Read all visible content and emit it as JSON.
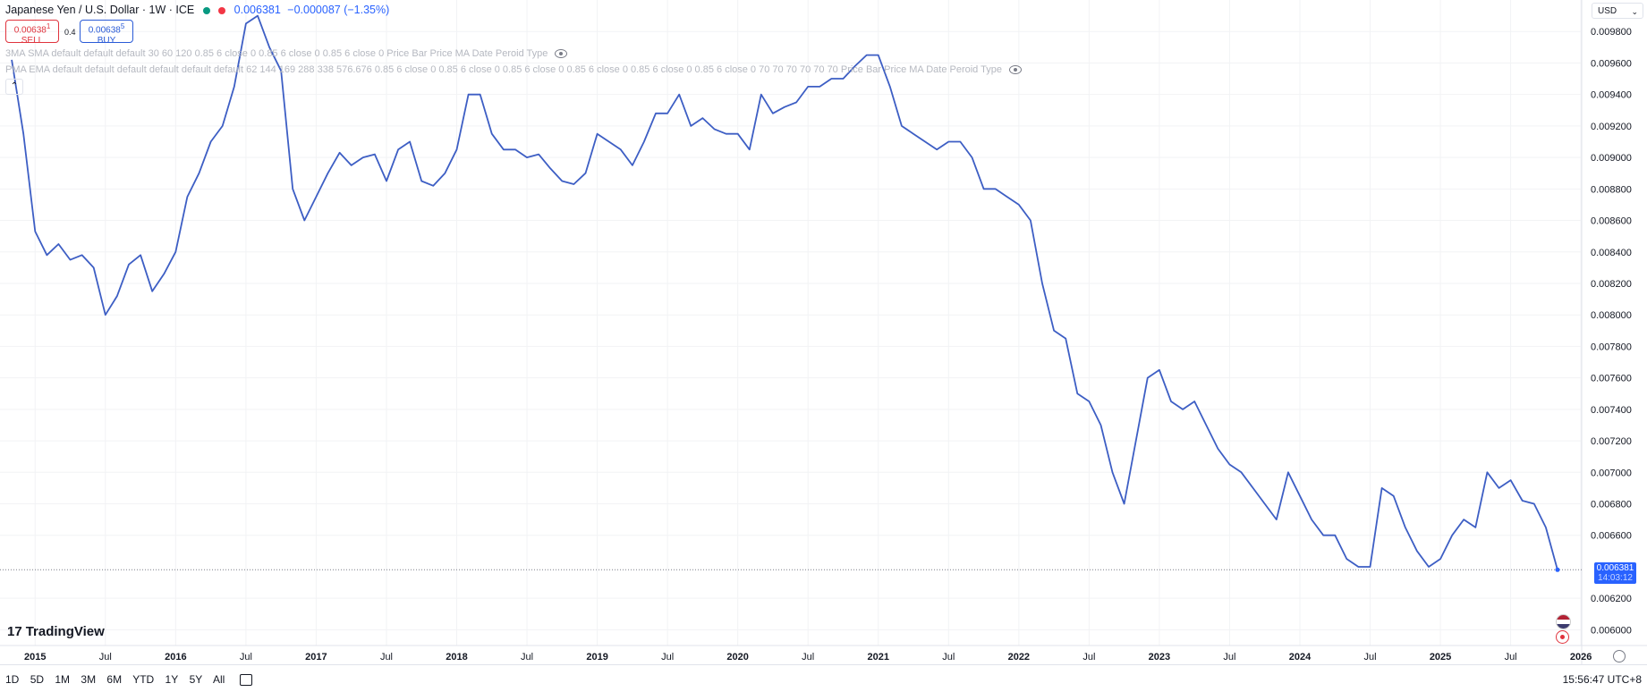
{
  "header": {
    "symbol_title": "Japanese Yen / U.S. Dollar · 1W · ICE",
    "last_price": "0.006381",
    "change": "−0.000087 (−1.35%)",
    "status_colors": [
      "#089981",
      "#f23645"
    ]
  },
  "trade": {
    "sell_price": "0.00638",
    "sell_sup": "1",
    "sell_label": "SELL",
    "spread": "0.4",
    "buy_price": "0.00638",
    "buy_sup": "5",
    "buy_label": "BUY"
  },
  "indicators": {
    "sma_label": "3MA SMA default default default 30 60 120 0.85 6 close 0 0.85 6 close 0 0.85 6 close 0 Price Bar Price MA Date Peroid Type",
    "ema_label": "PMA EMA default default default default default default 62 144 169 288 338 576.676 0.85 6 close 0 0.85 6 close 0 0.85 6 close 0 0.85 6 close 0 0.85 6 close 0 0.85 6 close 0 70 70 70 70 70 70 Price Bar Price MA Date Peroid Type"
  },
  "currency_selector": "USD",
  "brand": "TradingView",
  "price_tag": {
    "value": "0.006381",
    "countdown": "14:03:12"
  },
  "bottom": {
    "ranges": [
      "1D",
      "5D",
      "1M",
      "3M",
      "6M",
      "YTD",
      "1Y",
      "5Y",
      "All"
    ],
    "time": "15:56:47 UTC+8"
  },
  "colors": {
    "line": "#3d5ec4",
    "accent": "#2962ff",
    "sell": "#e0333d",
    "buy": "#2a5bd7",
    "grid": "#f2f3f5"
  },
  "chart_data": {
    "type": "line",
    "title": "Japanese Yen / U.S. Dollar · 1W · ICE",
    "series": [
      {
        "name": "",
        "x": [],
        "y": []
      }
    ],
    "x": [
      "2014-11",
      "2014-12",
      "2015-01",
      "2015-02",
      "2015-03",
      "2015-04",
      "2015-05",
      "2015-06",
      "2015-07",
      "2015-08",
      "2015-09",
      "2015-10",
      "2015-11",
      "2015-12",
      "2016-01",
      "2016-02",
      "2016-03",
      "2016-04",
      "2016-05",
      "2016-06",
      "2016-07",
      "2016-08",
      "2016-09",
      "2016-10",
      "2016-11",
      "2016-12",
      "2017-01",
      "2017-02",
      "2017-03",
      "2017-04",
      "2017-05",
      "2017-06",
      "2017-07",
      "2017-08",
      "2017-09",
      "2017-10",
      "2017-11",
      "2017-12",
      "2018-01",
      "2018-02",
      "2018-03",
      "2018-04",
      "2018-05",
      "2018-06",
      "2018-07",
      "2018-08",
      "2018-09",
      "2018-10",
      "2018-11",
      "2018-12",
      "2019-01",
      "2019-02",
      "2019-03",
      "2019-04",
      "2019-05",
      "2019-06",
      "2019-07",
      "2019-08",
      "2019-09",
      "2019-10",
      "2019-11",
      "2019-12",
      "2020-01",
      "2020-02",
      "2020-03",
      "2020-04",
      "2020-05",
      "2020-06",
      "2020-07",
      "2020-08",
      "2020-09",
      "2020-10",
      "2020-11",
      "2020-12",
      "2021-01",
      "2021-02",
      "2021-03",
      "2021-04",
      "2021-05",
      "2021-06",
      "2021-07",
      "2021-08",
      "2021-09",
      "2021-10",
      "2021-11",
      "2021-12",
      "2022-01",
      "2022-02",
      "2022-03",
      "2022-04",
      "2022-05",
      "2022-06",
      "2022-07",
      "2022-08",
      "2022-09",
      "2022-10",
      "2022-11",
      "2022-12",
      "2023-01",
      "2023-02",
      "2023-03",
      "2023-04",
      "2023-05",
      "2023-06",
      "2023-07",
      "2023-08",
      "2023-09",
      "2023-10",
      "2023-11",
      "2023-12",
      "2024-01",
      "2024-02",
      "2024-03",
      "2024-04",
      "2024-05",
      "2024-06",
      "2024-07",
      "2024-08",
      "2024-09",
      "2024-10",
      "2024-11",
      "2024-12",
      "2025-01",
      "2025-02",
      "2025-03",
      "2025-04",
      "2025-05",
      "2025-06",
      "2025-07",
      "2025-08",
      "2025-09",
      "2025-10",
      "2025-11"
    ],
    "values": [
      0.00962,
      0.00915,
      0.00853,
      0.00838,
      0.00845,
      0.00835,
      0.00838,
      0.0083,
      0.008,
      0.00812,
      0.00832,
      0.00838,
      0.00815,
      0.00826,
      0.0084,
      0.00875,
      0.0089,
      0.0091,
      0.0092,
      0.00945,
      0.00985,
      0.0099,
      0.0097,
      0.00955,
      0.0088,
      0.0086,
      0.00875,
      0.0089,
      0.00903,
      0.00895,
      0.009,
      0.00902,
      0.00885,
      0.00905,
      0.0091,
      0.00885,
      0.00882,
      0.0089,
      0.00905,
      0.0094,
      0.0094,
      0.00915,
      0.00905,
      0.00905,
      0.009,
      0.00902,
      0.00893,
      0.00885,
      0.00883,
      0.0089,
      0.00915,
      0.0091,
      0.00905,
      0.00895,
      0.0091,
      0.00928,
      0.00928,
      0.0094,
      0.0092,
      0.00925,
      0.00918,
      0.00915,
      0.00915,
      0.00905,
      0.0094,
      0.00928,
      0.00932,
      0.00935,
      0.00945,
      0.00945,
      0.0095,
      0.0095,
      0.00958,
      0.00965,
      0.00965,
      0.00945,
      0.0092,
      0.00915,
      0.0091,
      0.00905,
      0.0091,
      0.0091,
      0.009,
      0.0088,
      0.0088,
      0.00875,
      0.0087,
      0.0086,
      0.0082,
      0.0079,
      0.00785,
      0.0075,
      0.00745,
      0.0073,
      0.007,
      0.0068,
      0.0072,
      0.0076,
      0.00765,
      0.00745,
      0.0074,
      0.00745,
      0.0073,
      0.00715,
      0.00705,
      0.007,
      0.0069,
      0.0068,
      0.0067,
      0.007,
      0.00685,
      0.0067,
      0.0066,
      0.0066,
      0.00645,
      0.0064,
      0.0064,
      0.0069,
      0.00685,
      0.00665,
      0.0065,
      0.0064,
      0.00645,
      0.0066,
      0.0067,
      0.00665,
      0.007,
      0.0069,
      0.00695,
      0.00682,
      0.0068,
      0.00665,
      0.00638
    ],
    "last": 0.006381,
    "ylim": [
      0.0059,
      0.01
    ],
    "y_ticks": [
      "0.009800",
      "0.009600",
      "0.009400",
      "0.009200",
      "0.009000",
      "0.008800",
      "0.008600",
      "0.008400",
      "0.008200",
      "0.008000",
      "0.007800",
      "0.007600",
      "0.007400",
      "0.007200",
      "0.007000",
      "0.006800",
      "0.006600",
      "0.006200",
      "0.006000"
    ],
    "x_ticks": [
      {
        "label": "2015",
        "date": "2015-01",
        "bold": true
      },
      {
        "label": "Jul",
        "date": "2015-07",
        "bold": false
      },
      {
        "label": "2016",
        "date": "2016-01",
        "bold": true
      },
      {
        "label": "Jul",
        "date": "2016-07",
        "bold": false
      },
      {
        "label": "2017",
        "date": "2017-01",
        "bold": true
      },
      {
        "label": "Jul",
        "date": "2017-07",
        "bold": false
      },
      {
        "label": "2018",
        "date": "2018-01",
        "bold": true
      },
      {
        "label": "Jul",
        "date": "2018-07",
        "bold": false
      },
      {
        "label": "2019",
        "date": "2019-01",
        "bold": true
      },
      {
        "label": "Jul",
        "date": "2019-07",
        "bold": false
      },
      {
        "label": "2020",
        "date": "2020-01",
        "bold": true
      },
      {
        "label": "Jul",
        "date": "2020-07",
        "bold": false
      },
      {
        "label": "2021",
        "date": "2021-01",
        "bold": true
      },
      {
        "label": "Jul",
        "date": "2021-07",
        "bold": false
      },
      {
        "label": "2022",
        "date": "2022-01",
        "bold": true
      },
      {
        "label": "Jul",
        "date": "2022-07",
        "bold": false
      },
      {
        "label": "2023",
        "date": "2023-01",
        "bold": true
      },
      {
        "label": "Jul",
        "date": "2023-07",
        "bold": false
      },
      {
        "label": "2024",
        "date": "2024-01",
        "bold": true
      },
      {
        "label": "Jul",
        "date": "2024-07",
        "bold": false
      },
      {
        "label": "2025",
        "date": "2025-01",
        "bold": true
      },
      {
        "label": "Jul",
        "date": "2025-07",
        "bold": false
      },
      {
        "label": "2026",
        "date": "2026-01",
        "bold": true
      }
    ],
    "grid": true,
    "legend": "none"
  }
}
